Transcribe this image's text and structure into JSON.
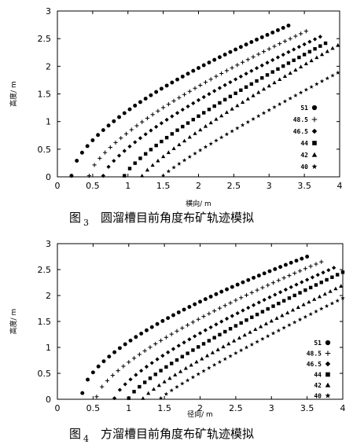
{
  "chart_data": [
    {
      "type": "scatter",
      "figure_label": "图",
      "figure_number": "3",
      "caption": "圆溜槽目前角度布矿轨迹模拟",
      "xlabel": "横向/ m",
      "ylabel": "高度/ m",
      "xlim": [
        0,
        4
      ],
      "ylim": [
        0,
        3
      ],
      "xticks": [
        "0",
        "0.5",
        "1",
        "1.5",
        "2",
        "2.5",
        "3",
        "3.5",
        "4"
      ],
      "yticks": [
        "0",
        "0.5",
        "1",
        "1.5",
        "2",
        "2.5",
        "3"
      ],
      "legend_position": "right",
      "series": [
        {
          "name": "51",
          "marker": "circle",
          "start": [
            0.2,
            0.02
          ],
          "end": [
            3.3,
            2.75
          ],
          "power": 0.62
        },
        {
          "name": "48.5",
          "marker": "plus",
          "start": [
            0.45,
            0.02
          ],
          "end": [
            3.55,
            2.65
          ],
          "power": 0.7
        },
        {
          "name": "46.5",
          "marker": "diamond",
          "start": [
            0.65,
            0.02
          ],
          "end": [
            3.75,
            2.55
          ],
          "power": 0.74
        },
        {
          "name": "44",
          "marker": "square",
          "start": [
            0.95,
            0.02
          ],
          "end": [
            3.85,
            2.45
          ],
          "power": 0.8
        },
        {
          "name": "42",
          "marker": "triangle",
          "start": [
            1.2,
            0.02
          ],
          "end": [
            4.0,
            2.4
          ],
          "power": 0.86
        },
        {
          "name": "40",
          "marker": "star",
          "start": [
            1.5,
            0.02
          ],
          "end": [
            4.0,
            1.9
          ],
          "power": 0.9
        }
      ]
    },
    {
      "type": "scatter",
      "figure_label": "图",
      "figure_number": "4",
      "caption": "方溜槽目前角度布矿轨迹模拟",
      "xlabel": "径向/ m",
      "ylabel": "高度/ m",
      "xlim": [
        0,
        4
      ],
      "ylim": [
        0,
        3
      ],
      "xticks": [
        "0",
        "0.5",
        "1",
        "1.5",
        "2",
        "2.5",
        "3",
        "3.5",
        "4"
      ],
      "yticks": [
        "0",
        "0.5",
        "1",
        "1.5",
        "2",
        "2.5",
        "3"
      ],
      "legend_position": "right",
      "series": [
        {
          "name": "51",
          "marker": "circle",
          "start": [
            0.35,
            0.12
          ],
          "end": [
            3.5,
            2.75
          ],
          "power": 0.62
        },
        {
          "name": "48.5",
          "marker": "plus",
          "start": [
            0.55,
            0.05
          ],
          "end": [
            3.7,
            2.65
          ],
          "power": 0.7
        },
        {
          "name": "46.5",
          "marker": "diamond",
          "start": [
            0.8,
            0.02
          ],
          "end": [
            3.9,
            2.55
          ],
          "power": 0.74
        },
        {
          "name": "44",
          "marker": "square",
          "start": [
            1.0,
            0.02
          ],
          "end": [
            4.0,
            2.45
          ],
          "power": 0.8
        },
        {
          "name": "42",
          "marker": "triangle",
          "start": [
            1.2,
            0.02
          ],
          "end": [
            4.0,
            2.2
          ],
          "power": 0.86
        },
        {
          "name": "40",
          "marker": "star",
          "start": [
            1.45,
            0.02
          ],
          "end": [
            4.0,
            1.95
          ],
          "power": 0.9
        }
      ]
    }
  ]
}
